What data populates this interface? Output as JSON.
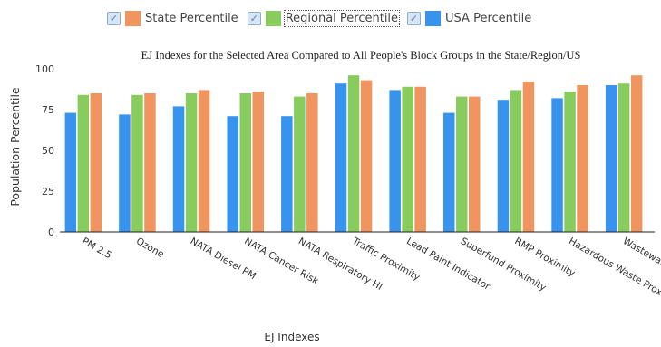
{
  "legend": [
    {
      "name": "State Percentile",
      "color": "#f0955f"
    },
    {
      "name": "Regional Percentile",
      "color": "#88cc5e"
    },
    {
      "name": "USA Percentile",
      "color": "#3793ee"
    }
  ],
  "chart_data": {
    "type": "bar",
    "title": "EJ Indexes for the Selected Area Compared to All People's Block Groups in the State/Region/US",
    "xlabel": "EJ Indexes",
    "ylabel": "Population Percentile",
    "ylim": [
      0,
      100
    ],
    "yticks": [
      0,
      25,
      50,
      75,
      100
    ],
    "legend_position": "top",
    "grid": false,
    "categories": [
      "PM 2.5",
      "Ozone",
      "NATA Diesel PM",
      "NATA Cancer Risk",
      "NATA Respiratory HI",
      "Traffic Proximity",
      "Lead Paint Indicator",
      "Superfund Proximity",
      "RMP Proximity",
      "Hazardous Waste Proximity",
      "Wastewater Discharge Indicator"
    ],
    "series": [
      {
        "name": "USA Percentile",
        "color": "#3793ee",
        "values": [
          73,
          72,
          77,
          71,
          71,
          91,
          87,
          73,
          81,
          82,
          90
        ]
      },
      {
        "name": "Regional Percentile",
        "color": "#88cc5e",
        "values": [
          84,
          84,
          85,
          85,
          83,
          96,
          89,
          83,
          87,
          86,
          91
        ]
      },
      {
        "name": "State Percentile",
        "color": "#f0955f",
        "values": [
          85,
          85,
          87,
          86,
          85,
          93,
          89,
          83,
          92,
          90,
          96
        ]
      }
    ]
  }
}
